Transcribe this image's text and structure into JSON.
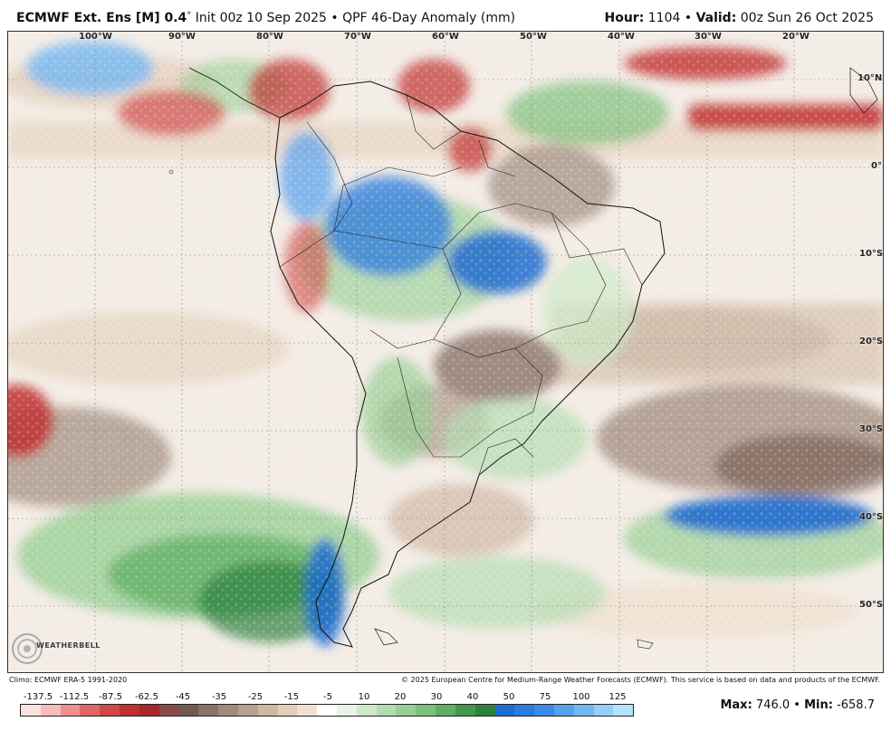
{
  "header": {
    "model": "ECMWF Ext. Ens [M] 0.4",
    "degree": "°",
    "init": "Init 00z 10 Sep 2025",
    "bullet": "•",
    "product": "QPF 46-Day Anomaly (mm)",
    "hour_label": "Hour:",
    "hour_value": "1104",
    "valid_label": "Valid:",
    "valid_value": "00z Sun 26 Oct 2025"
  },
  "map": {
    "region": "South America",
    "lon_labels": [
      "100°W",
      "90°W",
      "80°W",
      "70°W",
      "60°W",
      "50°W",
      "40°W",
      "30°W",
      "20°W"
    ],
    "lat_labels": [
      "10°N",
      "0°",
      "10°S",
      "20°S",
      "30°S",
      "40°S",
      "50°S"
    ]
  },
  "watermark": {
    "text": "WEATHERBELL"
  },
  "footer": {
    "climo": "Climo: ECMWF ERA-5 1991-2020",
    "copyright": "© 2025 European Centre for Medium-Range Weather Forecasts (ECMWF). This service is based on data and products of the ECMWF."
  },
  "legend": {
    "colors": [
      "#fde0e0",
      "#f8bcbc",
      "#ef9090",
      "#e06666",
      "#d04848",
      "#c03030",
      "#a82828",
      "#8a4a46",
      "#725a52",
      "#8a7268",
      "#a08a7c",
      "#b8a08e",
      "#cfb7a2",
      "#e2cdb8",
      "#efe0d0",
      "#ffffff",
      "#e8f4e6",
      "#cde9c8",
      "#b3ddb0",
      "#98cf96",
      "#7dc07c",
      "#5fae62",
      "#43984c",
      "#2e8040",
      "#1e6cd0",
      "#2a7ae0",
      "#3a8ae8",
      "#56a0ee",
      "#74b8f2",
      "#94cff6",
      "#b4e4fa"
    ],
    "ticks": [
      "-137.5",
      "-112.5",
      "-87.5",
      "-62.5",
      "-45",
      "-35",
      "-25",
      "-15",
      "-5",
      "10",
      "20",
      "30",
      "40",
      "50",
      "75",
      "100",
      "125"
    ]
  },
  "stats": {
    "max_label": "Max:",
    "max_value": "746.0",
    "min_label": "Min:",
    "min_value": "-658.7"
  }
}
